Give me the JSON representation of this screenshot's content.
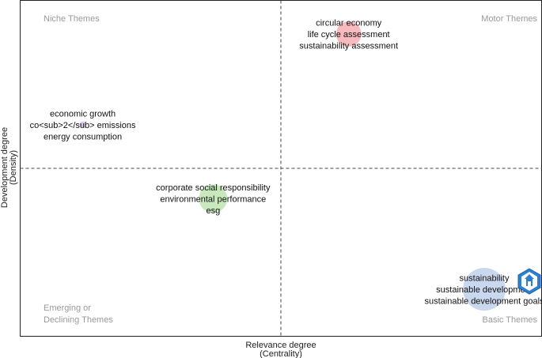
{
  "chart_data": {
    "type": "scatter",
    "subtype": "thematic map",
    "xlabel": [
      "Relevance degree",
      "(Centrality)"
    ],
    "ylabel": [
      "Development degree",
      "(Density)"
    ],
    "xlim": [
      0,
      1
    ],
    "ylim": [
      0,
      1
    ],
    "quadrant_split": {
      "x": 0.5,
      "y": 0.5
    },
    "grid": false,
    "quadrants": {
      "top_left": "Niche Themes",
      "top_right": "Motor Themes",
      "bottom_left": [
        "Emerging or",
        "Declining Themes"
      ],
      "bottom_right": "Basic Themes"
    },
    "clusters": [
      {
        "x": 0.63,
        "y": 0.9,
        "size": 16,
        "color": "#f4a3a8",
        "keywords": [
          "circular economy",
          "life cycle assessment",
          "sustainability assessment"
        ]
      },
      {
        "x": 0.12,
        "y": 0.63,
        "size": 4,
        "color": "#c9b3e6",
        "keywords": [
          "economic growth",
          "co<sub>2</sub> emissions",
          "energy consumption"
        ]
      },
      {
        "x": 0.37,
        "y": 0.41,
        "size": 18,
        "color": "#b7e0a8",
        "keywords": [
          "corporate social responsibility",
          "environmental performance",
          "esg"
        ]
      },
      {
        "x": 0.89,
        "y": 0.14,
        "size": 27,
        "color": "#b7cbe8",
        "keywords": [
          "sustainability",
          "sustainable development",
          "sustainable development goals"
        ]
      }
    ],
    "logo": {
      "color": "#2e7fd1"
    }
  }
}
